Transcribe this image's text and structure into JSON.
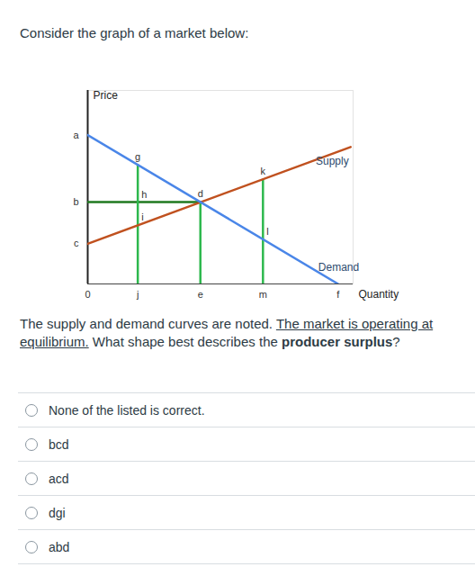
{
  "header": "Consider the graph of a market below:",
  "chart_data": {
    "type": "line",
    "x_label": "Quantity",
    "y_label": "Price",
    "xlim": [
      0,
      10.6
    ],
    "ylim": [
      0,
      13
    ],
    "xticks": [],
    "yticks": [],
    "tick_labels": false,
    "series": [
      {
        "name": "Supply",
        "color": "#c0511f",
        "x": [
          0,
          10.5
        ],
        "values": [
          2.7,
          9.2
        ]
      },
      {
        "name": "Demand",
        "color": "#4a86e8",
        "x": [
          0,
          10
        ],
        "values": [
          10,
          0
        ]
      }
    ],
    "guides": [
      {
        "color": "#1f7a1f",
        "x": [
          0,
          4.5
        ],
        "values": [
          5.5,
          5.5
        ]
      },
      {
        "color": "#2db84d",
        "x": [
          2,
          2
        ],
        "values": [
          0,
          8
        ]
      },
      {
        "color": "#2db84d",
        "x": [
          4.5,
          4.5
        ],
        "values": [
          0,
          5.5
        ]
      },
      {
        "color": "#2db84d",
        "x": [
          7,
          7
        ],
        "values": [
          0,
          7
        ]
      }
    ],
    "points": [
      {
        "label": "a",
        "x": 0,
        "y": 10
      },
      {
        "label": "b",
        "x": 0,
        "y": 5.5
      },
      {
        "label": "c",
        "x": 0,
        "y": 2.7
      },
      {
        "label": "0",
        "x": 0,
        "y": 0
      },
      {
        "label": "j",
        "x": 2,
        "y": 0
      },
      {
        "label": "e",
        "x": 4.5,
        "y": 0
      },
      {
        "label": "m",
        "x": 7,
        "y": 0
      },
      {
        "label": "f",
        "x": 10,
        "y": 0
      },
      {
        "label": "g",
        "x": 2,
        "y": 8
      },
      {
        "label": "h",
        "x": 2,
        "y": 5.5
      },
      {
        "label": "i",
        "x": 2,
        "y": 4
      },
      {
        "label": "d",
        "x": 4.5,
        "y": 5.5
      },
      {
        "label": "k",
        "x": 7,
        "y": 7
      },
      {
        "label": "l",
        "x": 7,
        "y": 3
      }
    ]
  },
  "question": [
    {
      "text": "The supply and demand curves are noted. "
    },
    {
      "text": "The market is operating at equilibrium.",
      "style": "underline"
    },
    {
      "text": " What shape best describes the "
    },
    {
      "text": "producer surplus",
      "style": "bold"
    },
    {
      "text": "?"
    }
  ],
  "options": [
    "None of the listed is correct.",
    "bcd",
    "acd",
    "dgi",
    "abd"
  ]
}
